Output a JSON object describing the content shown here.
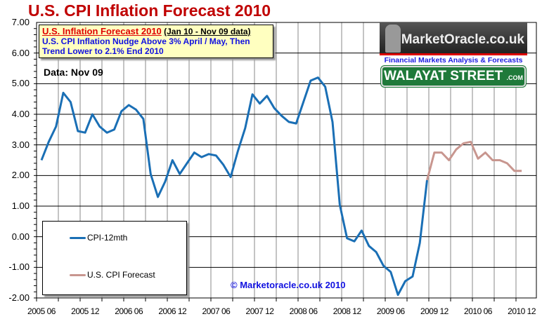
{
  "chart_data": {
    "type": "line",
    "title": "U.S. CPI Inflation Forecast 2010",
    "annotation": {
      "heading": "U.S. Inflation  Forecast 2010",
      "range": "(Jan 10 - Nov 09 data)",
      "line1": "U.S. CPI Inflation Nudge Above 3% April / May, Then",
      "line2": "Trend Lower to 2.1% End 2010"
    },
    "data_label": "Data:  Nov 09",
    "ylim": [
      -2,
      7
    ],
    "y_ticks": [
      "7.00",
      "6.00",
      "5.00",
      "4.00",
      "3.00",
      "2.00",
      "1.00",
      "0.00",
      "-1.00",
      "-2.00"
    ],
    "x_ticks": [
      "2005 06",
      "2005 12",
      "2006 06",
      "2006 12",
      "2007 06",
      "2007 12",
      "2008 06",
      "2008 12",
      "2009 06",
      "2009 12",
      "2010 06",
      "2010 12"
    ],
    "x_start": "2005 06",
    "x_unit": "month",
    "grid": true,
    "legend": "bottom-left",
    "series": [
      {
        "name": "CPI-12mth",
        "color": "#1a6fb5",
        "start_month": 0,
        "values": [
          2.5,
          3.1,
          3.6,
          4.7,
          4.4,
          3.45,
          3.4,
          4.0,
          3.6,
          3.4,
          3.5,
          4.1,
          4.3,
          4.15,
          3.85,
          2.05,
          1.3,
          1.8,
          2.5,
          2.05,
          2.4,
          2.75,
          2.6,
          2.7,
          2.65,
          2.35,
          1.95,
          2.8,
          3.55,
          4.65,
          4.35,
          4.6,
          4.2,
          3.95,
          3.75,
          3.7,
          4.4,
          5.1,
          5.2,
          4.9,
          3.75,
          1.05,
          -0.05,
          -0.15,
          0.2,
          -0.3,
          -0.5,
          -0.95,
          -1.15,
          -1.9,
          -1.45,
          -1.3,
          -0.2,
          1.85
        ]
      },
      {
        "name": "U.S. CPI Forecast",
        "color": "#c8968f",
        "start_month": 53,
        "values": [
          1.85,
          2.75,
          2.75,
          2.5,
          2.85,
          3.05,
          3.1,
          2.55,
          2.75,
          2.5,
          2.5,
          2.4,
          2.15,
          2.15
        ]
      }
    ]
  },
  "logo": {
    "name": "MarketOracle.co.uk",
    "tagline": "Financial Markets Analysis & Forecasts",
    "sign": "WALAYAT STREET",
    "sign_suffix": ".COM"
  },
  "copyright": "© Marketoracle.co.uk  2010"
}
